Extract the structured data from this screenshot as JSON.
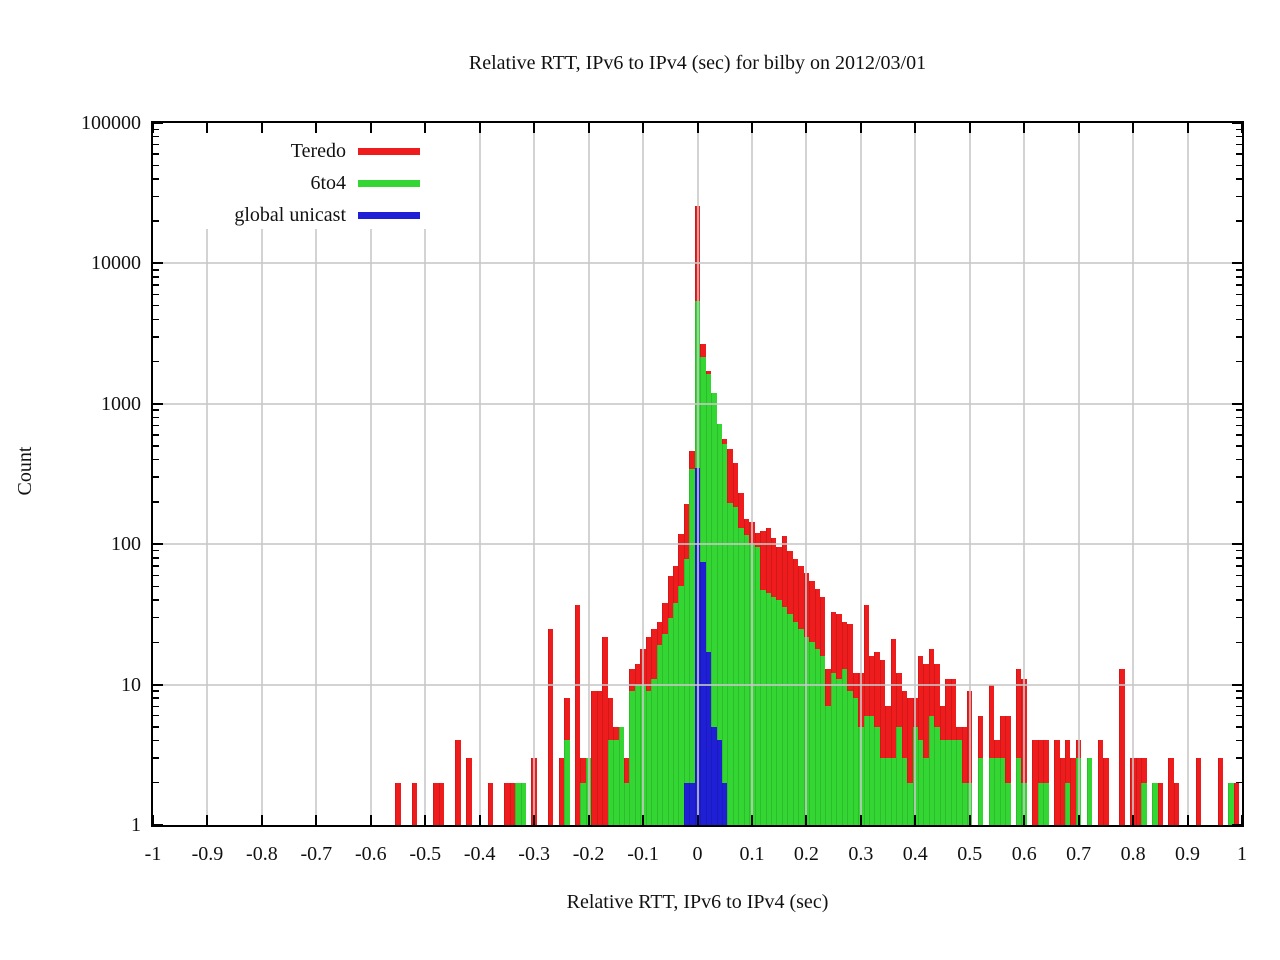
{
  "page": {
    "background": "#ffffff"
  },
  "chart_data": {
    "type": "bar",
    "title": "Relative RTT, IPv6 to IPv4 (sec) for bilby on 2012/03/01",
    "xlabel": "Relative RTT, IPv6 to IPv4 (sec)",
    "ylabel": "Count",
    "xlim": [
      -1,
      1
    ],
    "ylim": [
      1,
      100000
    ],
    "y_scale": "log",
    "grid": true,
    "legend_position": "top-left-inside",
    "bin_width": 0.01,
    "x_tick_values": [
      -1,
      -0.9,
      -0.8,
      -0.7,
      -0.6,
      -0.5,
      -0.4,
      -0.3,
      -0.2,
      -0.1,
      0,
      0.1,
      0.2,
      0.3,
      0.4,
      0.5,
      0.6,
      0.7,
      0.8,
      0.9,
      1
    ],
    "x_tick_labels": [
      "-1",
      "-0.9",
      "-0.8",
      "-0.7",
      "-0.6",
      "-0.5",
      "-0.4",
      "-0.3",
      "-0.2",
      "-0.1",
      "0",
      "0.1",
      "0.2",
      "0.3",
      "0.4",
      "0.5",
      "0.6",
      "0.7",
      "0.8",
      "0.9",
      "1"
    ],
    "y_tick_values": [
      1,
      10,
      100,
      1000,
      10000,
      100000
    ],
    "y_tick_labels": [
      "1",
      "10",
      "100",
      "1000",
      "10000",
      "100000"
    ],
    "series": [
      {
        "name": "Teredo",
        "color": "#ee1c1c",
        "points": [
          [
            -0.55,
            2
          ],
          [
            -0.52,
            2
          ],
          [
            -0.48,
            2
          ],
          [
            -0.47,
            2
          ],
          [
            -0.44,
            4
          ],
          [
            -0.42,
            3
          ],
          [
            -0.38,
            2
          ],
          [
            -0.35,
            2
          ],
          [
            -0.34,
            2
          ],
          [
            -0.3,
            3
          ],
          [
            -0.27,
            25
          ],
          [
            -0.25,
            3
          ],
          [
            -0.24,
            8
          ],
          [
            -0.22,
            37
          ],
          [
            -0.21,
            3
          ],
          [
            -0.19,
            9
          ],
          [
            -0.18,
            9
          ],
          [
            -0.17,
            22
          ],
          [
            -0.16,
            8
          ],
          [
            -0.15,
            5
          ],
          [
            -0.14,
            5
          ],
          [
            -0.13,
            3
          ],
          [
            -0.12,
            13
          ],
          [
            -0.11,
            14
          ],
          [
            -0.1,
            18
          ],
          [
            -0.09,
            22
          ],
          [
            -0.08,
            25
          ],
          [
            -0.07,
            28
          ],
          [
            -0.06,
            38
          ],
          [
            -0.05,
            59
          ],
          [
            -0.04,
            70
          ],
          [
            -0.03,
            119
          ],
          [
            -0.02,
            194
          ],
          [
            -0.01,
            464
          ],
          [
            0,
            25700
          ],
          [
            0.01,
            2680
          ],
          [
            0.02,
            1700
          ],
          [
            0.03,
            770
          ],
          [
            0.04,
            690
          ],
          [
            0.05,
            560
          ],
          [
            0.06,
            480
          ],
          [
            0.07,
            380
          ],
          [
            0.08,
            230
          ],
          [
            0.09,
            152
          ],
          [
            0.1,
            143
          ],
          [
            0.11,
            120
          ],
          [
            0.12,
            125
          ],
          [
            0.13,
            130
          ],
          [
            0.14,
            110
          ],
          [
            0.15,
            95
          ],
          [
            0.16,
            115
          ],
          [
            0.17,
            90
          ],
          [
            0.18,
            78
          ],
          [
            0.19,
            70
          ],
          [
            0.2,
            62
          ],
          [
            0.21,
            55
          ],
          [
            0.22,
            48
          ],
          [
            0.23,
            42
          ],
          [
            0.24,
            13
          ],
          [
            0.25,
            33
          ],
          [
            0.26,
            32
          ],
          [
            0.27,
            28
          ],
          [
            0.28,
            27
          ],
          [
            0.29,
            12
          ],
          [
            0.3,
            12
          ],
          [
            0.31,
            37
          ],
          [
            0.32,
            16
          ],
          [
            0.33,
            17
          ],
          [
            0.34,
            15
          ],
          [
            0.35,
            7
          ],
          [
            0.36,
            21
          ],
          [
            0.37,
            12
          ],
          [
            0.38,
            9
          ],
          [
            0.39,
            8
          ],
          [
            0.4,
            8
          ],
          [
            0.41,
            16
          ],
          [
            0.42,
            14
          ],
          [
            0.43,
            18
          ],
          [
            0.44,
            14
          ],
          [
            0.45,
            7
          ],
          [
            0.46,
            11
          ],
          [
            0.47,
            11
          ],
          [
            0.48,
            5
          ],
          [
            0.49,
            5
          ],
          [
            0.5,
            9
          ],
          [
            0.52,
            6
          ],
          [
            0.54,
            10
          ],
          [
            0.55,
            4
          ],
          [
            0.56,
            6
          ],
          [
            0.57,
            6
          ],
          [
            0.59,
            13
          ],
          [
            0.6,
            11
          ],
          [
            0.62,
            4
          ],
          [
            0.63,
            4
          ],
          [
            0.64,
            4
          ],
          [
            0.66,
            4
          ],
          [
            0.67,
            3
          ],
          [
            0.68,
            4
          ],
          [
            0.69,
            3
          ],
          [
            0.7,
            4
          ],
          [
            0.72,
            2
          ],
          [
            0.74,
            4
          ],
          [
            0.75,
            3
          ],
          [
            0.78,
            13
          ],
          [
            0.8,
            3
          ],
          [
            0.81,
            3
          ],
          [
            0.82,
            3
          ],
          [
            0.84,
            2
          ],
          [
            0.85,
            2
          ],
          [
            0.87,
            3
          ],
          [
            0.88,
            2
          ],
          [
            0.92,
            3
          ],
          [
            0.96,
            3
          ],
          [
            0.99,
            2
          ]
        ]
      },
      {
        "name": "6to4",
        "color": "#33d633",
        "points": [
          [
            -0.33,
            2
          ],
          [
            -0.32,
            2
          ],
          [
            -0.24,
            4
          ],
          [
            -0.21,
            2
          ],
          [
            -0.2,
            3
          ],
          [
            -0.16,
            4
          ],
          [
            -0.15,
            4
          ],
          [
            -0.14,
            5
          ],
          [
            -0.13,
            2
          ],
          [
            -0.12,
            9
          ],
          [
            -0.11,
            10
          ],
          [
            -0.1,
            10
          ],
          [
            -0.09,
            9
          ],
          [
            -0.08,
            11
          ],
          [
            -0.07,
            19
          ],
          [
            -0.06,
            23
          ],
          [
            -0.05,
            30
          ],
          [
            -0.04,
            38
          ],
          [
            -0.03,
            50
          ],
          [
            -0.02,
            79
          ],
          [
            -0.01,
            345
          ],
          [
            0,
            5400
          ],
          [
            0.01,
            2150
          ],
          [
            0.02,
            1640
          ],
          [
            0.03,
            1200
          ],
          [
            0.04,
            720
          ],
          [
            0.05,
            520
          ],
          [
            0.06,
            195
          ],
          [
            0.07,
            185
          ],
          [
            0.08,
            130
          ],
          [
            0.09,
            116
          ],
          [
            0.1,
            98
          ],
          [
            0.11,
            95
          ],
          [
            0.12,
            47
          ],
          [
            0.13,
            45
          ],
          [
            0.14,
            42
          ],
          [
            0.15,
            40
          ],
          [
            0.16,
            36
          ],
          [
            0.17,
            32
          ],
          [
            0.18,
            28
          ],
          [
            0.19,
            25
          ],
          [
            0.2,
            22
          ],
          [
            0.21,
            20
          ],
          [
            0.22,
            18
          ],
          [
            0.23,
            16
          ],
          [
            0.24,
            7
          ],
          [
            0.25,
            12
          ],
          [
            0.26,
            11
          ],
          [
            0.27,
            13
          ],
          [
            0.28,
            9
          ],
          [
            0.29,
            8
          ],
          [
            0.3,
            5
          ],
          [
            0.31,
            6
          ],
          [
            0.32,
            6
          ],
          [
            0.33,
            5
          ],
          [
            0.34,
            3
          ],
          [
            0.35,
            3
          ],
          [
            0.36,
            3
          ],
          [
            0.37,
            5
          ],
          [
            0.38,
            3
          ],
          [
            0.39,
            2
          ],
          [
            0.4,
            5
          ],
          [
            0.41,
            4
          ],
          [
            0.42,
            3
          ],
          [
            0.43,
            6
          ],
          [
            0.44,
            5
          ],
          [
            0.45,
            4
          ],
          [
            0.46,
            4
          ],
          [
            0.47,
            4
          ],
          [
            0.48,
            4
          ],
          [
            0.49,
            2
          ],
          [
            0.5,
            2
          ],
          [
            0.52,
            3
          ],
          [
            0.54,
            3
          ],
          [
            0.55,
            3
          ],
          [
            0.56,
            3
          ],
          [
            0.57,
            2
          ],
          [
            0.59,
            3
          ],
          [
            0.6,
            2
          ],
          [
            0.63,
            2
          ],
          [
            0.64,
            2
          ],
          [
            0.68,
            2
          ],
          [
            0.7,
            3
          ],
          [
            0.72,
            3
          ],
          [
            0.82,
            2
          ],
          [
            0.84,
            2
          ],
          [
            0.98,
            2
          ]
        ]
      },
      {
        "name": "global unicast",
        "color": "#1f1fd6",
        "points": [
          [
            -0.02,
            2
          ],
          [
            -0.01,
            2
          ],
          [
            0,
            350
          ],
          [
            0.01,
            75
          ],
          [
            0.02,
            17
          ],
          [
            0.03,
            5
          ],
          [
            0.04,
            4
          ],
          [
            0.05,
            2
          ]
        ]
      }
    ]
  }
}
